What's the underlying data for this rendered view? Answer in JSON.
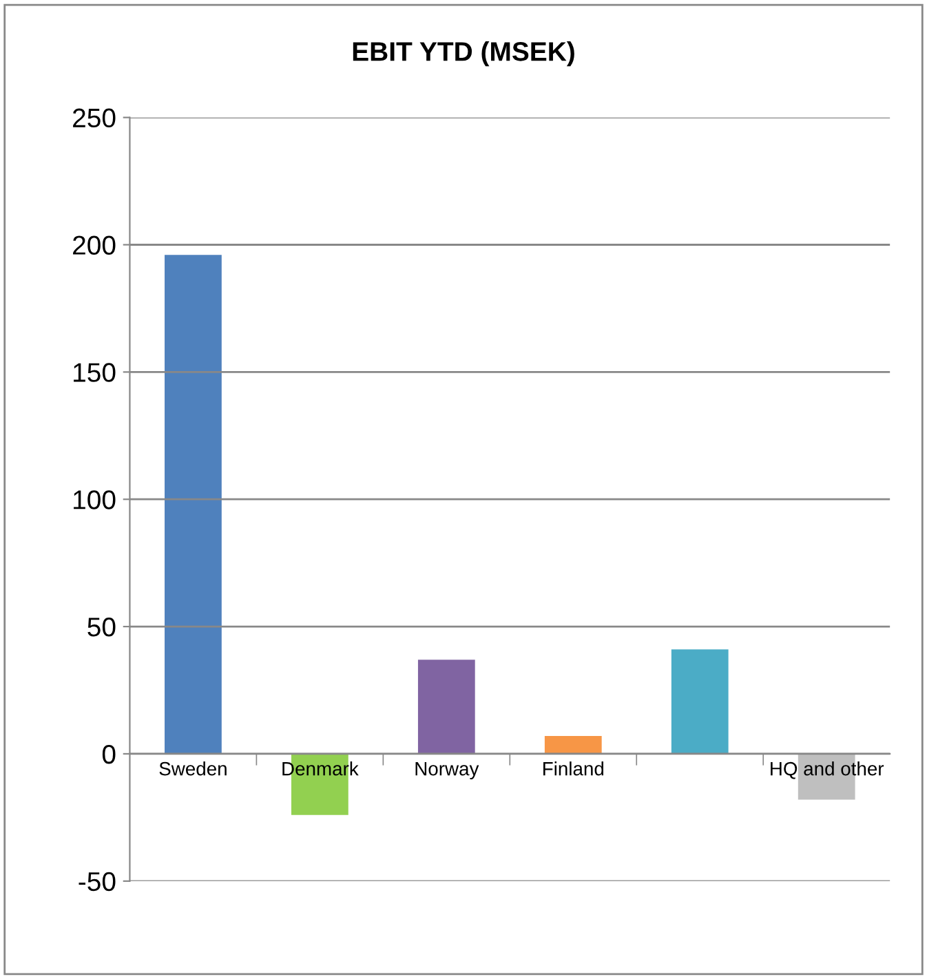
{
  "chart_data": {
    "type": "bar",
    "title": "EBIT YTD (MSEK)",
    "categories": [
      "Sweden",
      "Denmark",
      "Norway",
      "Finland",
      null,
      "HQ and other"
    ],
    "values": [
      196,
      -24,
      37,
      7,
      41,
      -18
    ],
    "colors": [
      "#4f81bd",
      "#92d050",
      "#8064a2",
      "#f79646",
      "#4bacc6",
      "#bfbfbf"
    ],
    "ylim": [
      -50,
      250
    ],
    "yticks": [
      -50,
      0,
      50,
      100,
      150,
      200,
      250
    ],
    "grid": "y",
    "legend": false
  }
}
